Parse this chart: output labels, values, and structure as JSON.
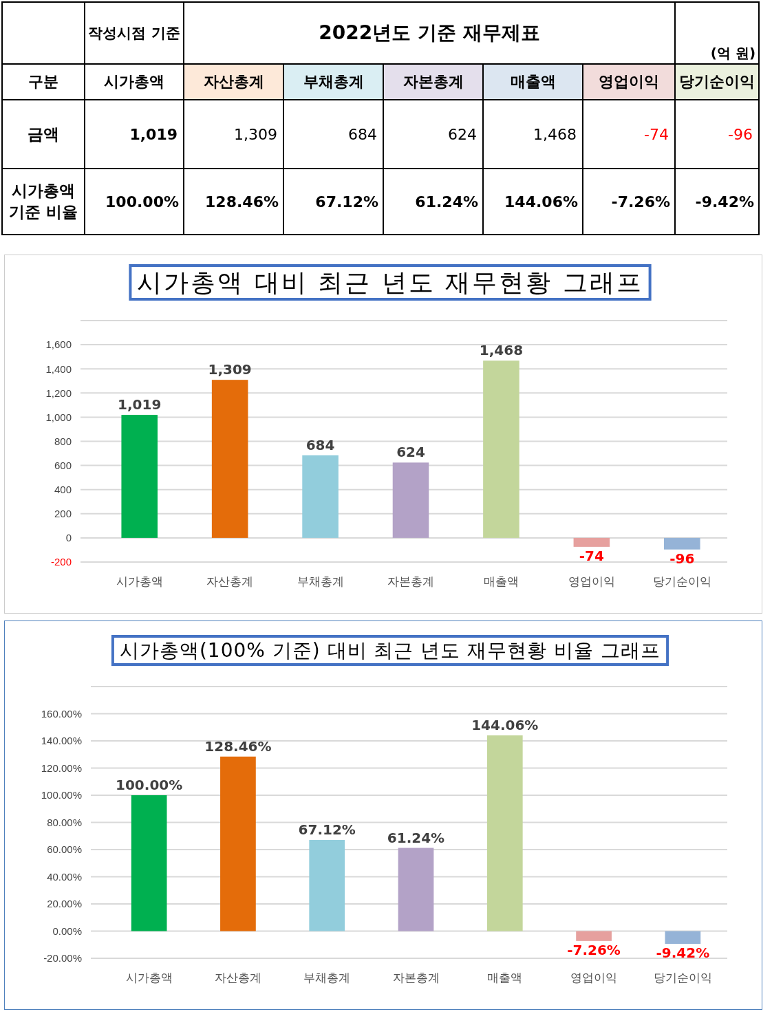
{
  "chart_data": [
    {
      "type": "other",
      "title": "2022년도 기준 재무제표",
      "annotations": [
        "작성시점 기준",
        "(억 원)",
        "구분"
      ],
      "categories": [
        "시가총액",
        "자산총계",
        "부채총계",
        "자본총계",
        "매출액",
        "영업이익",
        "당기순이익"
      ],
      "colors": [
        "#ffffff",
        "#fde9d9",
        "#daeef3",
        "#e4dfec",
        "#dce6f1",
        "#f2dcdb",
        "#ebf1de"
      ],
      "series": [
        {
          "name": "금액",
          "values": [
            1019,
            1309,
            684,
            624,
            1468,
            -74,
            -96
          ],
          "value_labels": [
            "1,019",
            "1,309",
            "684",
            "624",
            "1,468",
            "-74",
            "-96"
          ]
        },
        {
          "name": "시가총액 기준 비율",
          "values": [
            100,
            128.46,
            67.12,
            61.24,
            144.06,
            -7.26,
            -9.42
          ],
          "value_labels": [
            "100.00%",
            "128.46%",
            "67.12%",
            "61.24%",
            "144.06%",
            "-7.26%",
            "-9.42%"
          ]
        }
      ]
    },
    {
      "type": "bar",
      "title": "시가총액 대비 최근 년도 재무현황 그래프",
      "categories": [
        "시가총액",
        "자산총계",
        "부채총계",
        "자본총계",
        "매출액",
        "영업이익",
        "당기순이익"
      ],
      "values": [
        1019,
        1309,
        684,
        624,
        1468,
        -74,
        -96
      ],
      "value_labels": [
        "1,019",
        "1,309",
        "684",
        "624",
        "1,468",
        "-74",
        "-96"
      ],
      "colors": [
        "#00b050",
        "#e46c0a",
        "#92cddc",
        "#b3a2c7",
        "#c3d69b",
        "#e6a09e",
        "#95b3d7"
      ],
      "ylim": [
        -200,
        1800
      ],
      "yticks": [
        {
          "value": -200,
          "label": "-200"
        },
        {
          "value": 0,
          "label": "0"
        },
        {
          "value": 200,
          "label": "200"
        },
        {
          "value": 400,
          "label": "400"
        },
        {
          "value": 600,
          "label": "600"
        },
        {
          "value": 800,
          "label": "800"
        },
        {
          "value": 1000,
          "label": "1,000"
        },
        {
          "value": 1200,
          "label": "1,200"
        },
        {
          "value": 1400,
          "label": "1,400"
        },
        {
          "value": 1600,
          "label": "1,600"
        },
        {
          "value": 1800,
          "label": null
        }
      ],
      "grid": "y"
    },
    {
      "type": "bar",
      "title": "시가총액(100% 기준) 대비 최근 년도 재무현황 비율 그래프",
      "categories": [
        "시가총액",
        "자산총계",
        "부채총계",
        "자본총계",
        "매출액",
        "영업이익",
        "당기순이익"
      ],
      "values": [
        100,
        128.46,
        67.12,
        61.24,
        144.06,
        -7.26,
        -9.42
      ],
      "value_labels": [
        "100.00%",
        "128.46%",
        "67.12%",
        "61.24%",
        "144.06%",
        "-7.26%",
        "-9.42%"
      ],
      "colors": [
        "#00b050",
        "#e46c0a",
        "#92cddc",
        "#b3a2c7",
        "#c3d69b",
        "#e6a09e",
        "#95b3d7"
      ],
      "ylim": [
        -20,
        180
      ],
      "yticks": [
        {
          "value": -20,
          "label": "-20.00%"
        },
        {
          "value": 0,
          "label": "0.00%"
        },
        {
          "value": 20,
          "label": "20.00%"
        },
        {
          "value": 40,
          "label": "40.00%"
        },
        {
          "value": 60,
          "label": "60.00%"
        },
        {
          "value": 80,
          "label": "80.00%"
        },
        {
          "value": 100,
          "label": "100.00%"
        },
        {
          "value": 120,
          "label": "120.00%"
        },
        {
          "value": 140,
          "label": "140.00%"
        },
        {
          "value": 160,
          "label": "160.00%"
        },
        {
          "value": 180,
          "label": null
        }
      ],
      "grid": "y"
    }
  ]
}
